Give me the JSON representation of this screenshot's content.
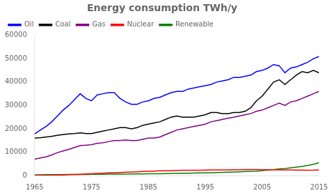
{
  "chart_data": {
    "type": "line",
    "title": "Energy consumption TWh/y",
    "x": [
      1965,
      1966,
      1967,
      1968,
      1969,
      1970,
      1971,
      1972,
      1973,
      1974,
      1975,
      1976,
      1977,
      1978,
      1979,
      1980,
      1981,
      1982,
      1983,
      1984,
      1985,
      1986,
      1987,
      1988,
      1989,
      1990,
      1991,
      1992,
      1993,
      1994,
      1995,
      1996,
      1997,
      1998,
      1999,
      2000,
      2001,
      2002,
      2003,
      2004,
      2005,
      2006,
      2007,
      2008,
      2009,
      2010,
      2011,
      2012,
      2013,
      2014,
      2015
    ],
    "series": [
      {
        "name": "Oil",
        "color": "#0000ff",
        "values": [
          17800,
          19500,
          21000,
          23000,
          25500,
          28000,
          30000,
          32500,
          35000,
          33000,
          32000,
          34500,
          35000,
          35500,
          35500,
          33000,
          31500,
          30500,
          30500,
          31500,
          32000,
          33000,
          33500,
          34500,
          35500,
          36000,
          36000,
          37000,
          37500,
          38000,
          38500,
          39000,
          40000,
          40500,
          41000,
          42000,
          42000,
          42500,
          43000,
          44500,
          45000,
          46000,
          47500,
          47000,
          44000,
          46000,
          46500,
          47500,
          48500,
          50000,
          51000
        ]
      },
      {
        "name": "Coal",
        "color": "#000000",
        "values": [
          16000,
          16200,
          16500,
          16800,
          17200,
          17500,
          17800,
          18000,
          18300,
          18000,
          18000,
          18500,
          19000,
          19500,
          20000,
          20500,
          20500,
          20000,
          20500,
          21500,
          22000,
          22500,
          23000,
          24000,
          25000,
          25500,
          25000,
          25000,
          25000,
          25500,
          26000,
          27000,
          27000,
          26500,
          26500,
          27000,
          27000,
          27500,
          29000,
          32000,
          34000,
          37000,
          40000,
          41000,
          39000,
          41000,
          43000,
          44500,
          44000,
          45000,
          44000
        ]
      },
      {
        "name": "Gas",
        "color": "#800080",
        "values": [
          7000,
          7500,
          8000,
          8800,
          9800,
          10500,
          11200,
          12000,
          12800,
          13000,
          13200,
          13800,
          14000,
          14500,
          15000,
          15000,
          15200,
          15000,
          15000,
          15500,
          16000,
          16000,
          16500,
          17500,
          18500,
          19500,
          20000,
          20500,
          21000,
          21500,
          22000,
          23000,
          23500,
          24000,
          24500,
          25000,
          25500,
          26000,
          26500,
          27500,
          28000,
          29000,
          30000,
          31000,
          30000,
          31500,
          32000,
          33000,
          34000,
          35000,
          36000
        ]
      },
      {
        "name": "Nuclear",
        "color": "#ff0000",
        "values": [
          50,
          80,
          100,
          150,
          200,
          250,
          350,
          450,
          550,
          650,
          750,
          900,
          1000,
          1100,
          1200,
          1300,
          1400,
          1500,
          1600,
          1700,
          1800,
          1900,
          2000,
          2050,
          2100,
          2150,
          2200,
          2200,
          2200,
          2250,
          2300,
          2350,
          2380,
          2400,
          2420,
          2450,
          2480,
          2500,
          2520,
          2500,
          2480,
          2450,
          2430,
          2400,
          2350,
          2350,
          2300,
          2280,
          2260,
          2300,
          2400
        ]
      },
      {
        "name": "Renewable",
        "color": "#008000",
        "values": [
          300,
          320,
          340,
          360,
          380,
          400,
          420,
          440,
          460,
          480,
          500,
          520,
          540,
          560,
          580,
          600,
          620,
          640,
          660,
          700,
          720,
          750,
          780,
          820,
          860,
          900,
          950,
          1000,
          1050,
          1100,
          1150,
          1200,
          1280,
          1360,
          1440,
          1520,
          1600,
          1700,
          1800,
          1900,
          2100,
          2300,
          2500,
          2800,
          3000,
          3300,
          3600,
          3900,
          4300,
          4800,
          5500
        ]
      }
    ],
    "xlim": [
      1965,
      2015
    ],
    "xticks": [
      1965,
      1975,
      1985,
      1995,
      2005,
      2015
    ],
    "ylim": [
      0,
      60000
    ],
    "yticks": [
      0,
      10000,
      20000,
      30000,
      40000,
      50000,
      60000
    ],
    "grid": false,
    "legend": "upper left"
  }
}
